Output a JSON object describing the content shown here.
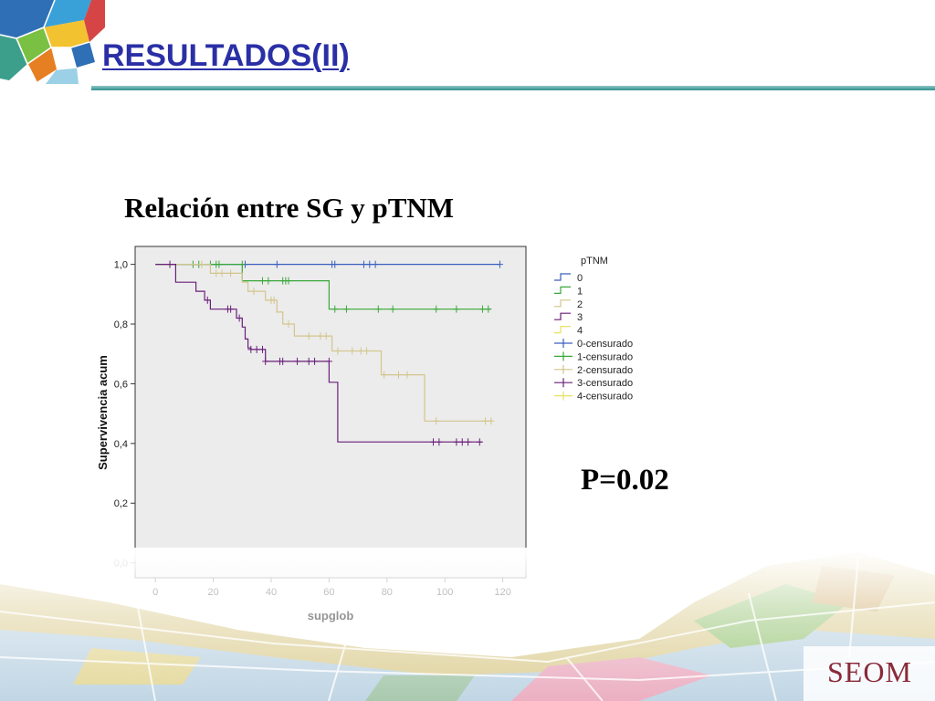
{
  "slide": {
    "title": "RESULTADOS(II)",
    "logo": "SEOM",
    "pvalue": "P=0.02"
  },
  "colors": {
    "title": "#2a2fa6",
    "rule": "#3a9a97",
    "pTNM_0": "#3b5fbf",
    "pTNM_1": "#3aa83a",
    "pTNM_2": "#d4c58c",
    "pTNM_3": "#6a1f7a",
    "pTNM_4": "#e8e066",
    "plot_bg": "#ececec"
  },
  "chart_data": {
    "type": "line",
    "subtype": "kaplan-meier",
    "title": "Relación entre SG y pTNM",
    "xlabel": "supglob",
    "ylabel": "Supervivencia acum",
    "xlim": [
      -7,
      128
    ],
    "ylim": [
      -0.05,
      1.06
    ],
    "xticks": [
      0,
      20,
      40,
      60,
      80,
      100,
      120
    ],
    "yticks": [
      0.0,
      0.2,
      0.4,
      0.6,
      0.8,
      1.0
    ],
    "xtick_labels": [
      "0",
      "20",
      "40",
      "60",
      "80",
      "100",
      "120"
    ],
    "ytick_labels": [
      "0,0",
      "0,2",
      "0,4",
      "0,6",
      "0,8",
      "1,0"
    ],
    "grid": false,
    "legend_title": "pTNM",
    "legend_position": "right",
    "legend": [
      "0",
      "1",
      "2",
      "3",
      "4",
      "0-censurado",
      "1-censurado",
      "2-censurado",
      "3-censurado",
      "4-censurado"
    ],
    "series": [
      {
        "name": "0",
        "color": "#3b5fbf",
        "steps": [
          [
            0,
            1.0
          ],
          [
            119,
            1.0
          ]
        ],
        "censored": [
          [
            31,
            1.0
          ],
          [
            42,
            1.0
          ],
          [
            61,
            1.0
          ],
          [
            62,
            1.0
          ],
          [
            72,
            1.0
          ],
          [
            74,
            1.0
          ],
          [
            76,
            1.0
          ],
          [
            119,
            1.0
          ]
        ]
      },
      {
        "name": "1",
        "color": "#3aa83a",
        "steps": [
          [
            0,
            1.0
          ],
          [
            30,
            1.0
          ],
          [
            30,
            0.945
          ],
          [
            60,
            0.945
          ],
          [
            60,
            0.85
          ],
          [
            116,
            0.85
          ]
        ],
        "censored": [
          [
            13,
            1.0
          ],
          [
            15,
            1.0
          ],
          [
            19,
            1.0
          ],
          [
            21,
            1.0
          ],
          [
            22,
            1.0
          ],
          [
            30,
            1.0
          ],
          [
            37,
            0.945
          ],
          [
            39,
            0.945
          ],
          [
            44,
            0.945
          ],
          [
            45,
            0.945
          ],
          [
            46,
            0.945
          ],
          [
            62,
            0.85
          ],
          [
            66,
            0.85
          ],
          [
            77,
            0.85
          ],
          [
            82,
            0.85
          ],
          [
            97,
            0.85
          ],
          [
            104,
            0.85
          ],
          [
            113,
            0.85
          ],
          [
            115,
            0.85
          ]
        ]
      },
      {
        "name": "2",
        "color": "#d4c58c",
        "steps": [
          [
            0,
            1.0
          ],
          [
            19,
            1.0
          ],
          [
            19,
            0.97
          ],
          [
            30,
            0.97
          ],
          [
            30,
            0.94
          ],
          [
            32,
            0.94
          ],
          [
            32,
            0.91
          ],
          [
            38,
            0.91
          ],
          [
            38,
            0.88
          ],
          [
            42,
            0.88
          ],
          [
            42,
            0.84
          ],
          [
            44,
            0.84
          ],
          [
            44,
            0.8
          ],
          [
            48,
            0.8
          ],
          [
            48,
            0.76
          ],
          [
            61,
            0.76
          ],
          [
            61,
            0.71
          ],
          [
            78,
            0.71
          ],
          [
            78,
            0.63
          ],
          [
            93,
            0.63
          ],
          [
            93,
            0.475
          ],
          [
            116,
            0.475
          ]
        ],
        "censored": [
          [
            16,
            1.0
          ],
          [
            21,
            0.97
          ],
          [
            23,
            0.97
          ],
          [
            26,
            0.97
          ],
          [
            34,
            0.91
          ],
          [
            40,
            0.88
          ],
          [
            41,
            0.88
          ],
          [
            46,
            0.8
          ],
          [
            53,
            0.76
          ],
          [
            57,
            0.76
          ],
          [
            59,
            0.76
          ],
          [
            63,
            0.71
          ],
          [
            68,
            0.71
          ],
          [
            71,
            0.71
          ],
          [
            73,
            0.71
          ],
          [
            79,
            0.63
          ],
          [
            84,
            0.63
          ],
          [
            87,
            0.63
          ],
          [
            97,
            0.475
          ],
          [
            114,
            0.475
          ],
          [
            116,
            0.475
          ]
        ]
      },
      {
        "name": "3",
        "color": "#6a1f7a",
        "steps": [
          [
            0,
            1.0
          ],
          [
            7,
            1.0
          ],
          [
            7,
            0.94
          ],
          [
            14,
            0.94
          ],
          [
            14,
            0.91
          ],
          [
            17,
            0.91
          ],
          [
            17,
            0.88
          ],
          [
            19,
            0.88
          ],
          [
            19,
            0.85
          ],
          [
            28,
            0.85
          ],
          [
            28,
            0.82
          ],
          [
            30,
            0.82
          ],
          [
            30,
            0.79
          ],
          [
            31,
            0.79
          ],
          [
            31,
            0.75
          ],
          [
            32,
            0.75
          ],
          [
            32,
            0.72
          ],
          [
            33,
            0.72
          ],
          [
            33,
            0.715
          ],
          [
            38,
            0.715
          ],
          [
            38,
            0.675
          ],
          [
            60,
            0.675
          ],
          [
            60,
            0.605
          ],
          [
            63,
            0.605
          ],
          [
            63,
            0.405
          ],
          [
            113,
            0.405
          ]
        ],
        "censored": [
          [
            5,
            1.0
          ],
          [
            18,
            0.88
          ],
          [
            25,
            0.85
          ],
          [
            26,
            0.85
          ],
          [
            29,
            0.82
          ],
          [
            33,
            0.715
          ],
          [
            35,
            0.715
          ],
          [
            37,
            0.715
          ],
          [
            38,
            0.675
          ],
          [
            43,
            0.675
          ],
          [
            44,
            0.675
          ],
          [
            49,
            0.675
          ],
          [
            53,
            0.675
          ],
          [
            55,
            0.675
          ],
          [
            60,
            0.675
          ],
          [
            96,
            0.405
          ],
          [
            98,
            0.405
          ],
          [
            104,
            0.405
          ],
          [
            106,
            0.405
          ],
          [
            108,
            0.405
          ],
          [
            112,
            0.405
          ]
        ]
      }
    ]
  }
}
